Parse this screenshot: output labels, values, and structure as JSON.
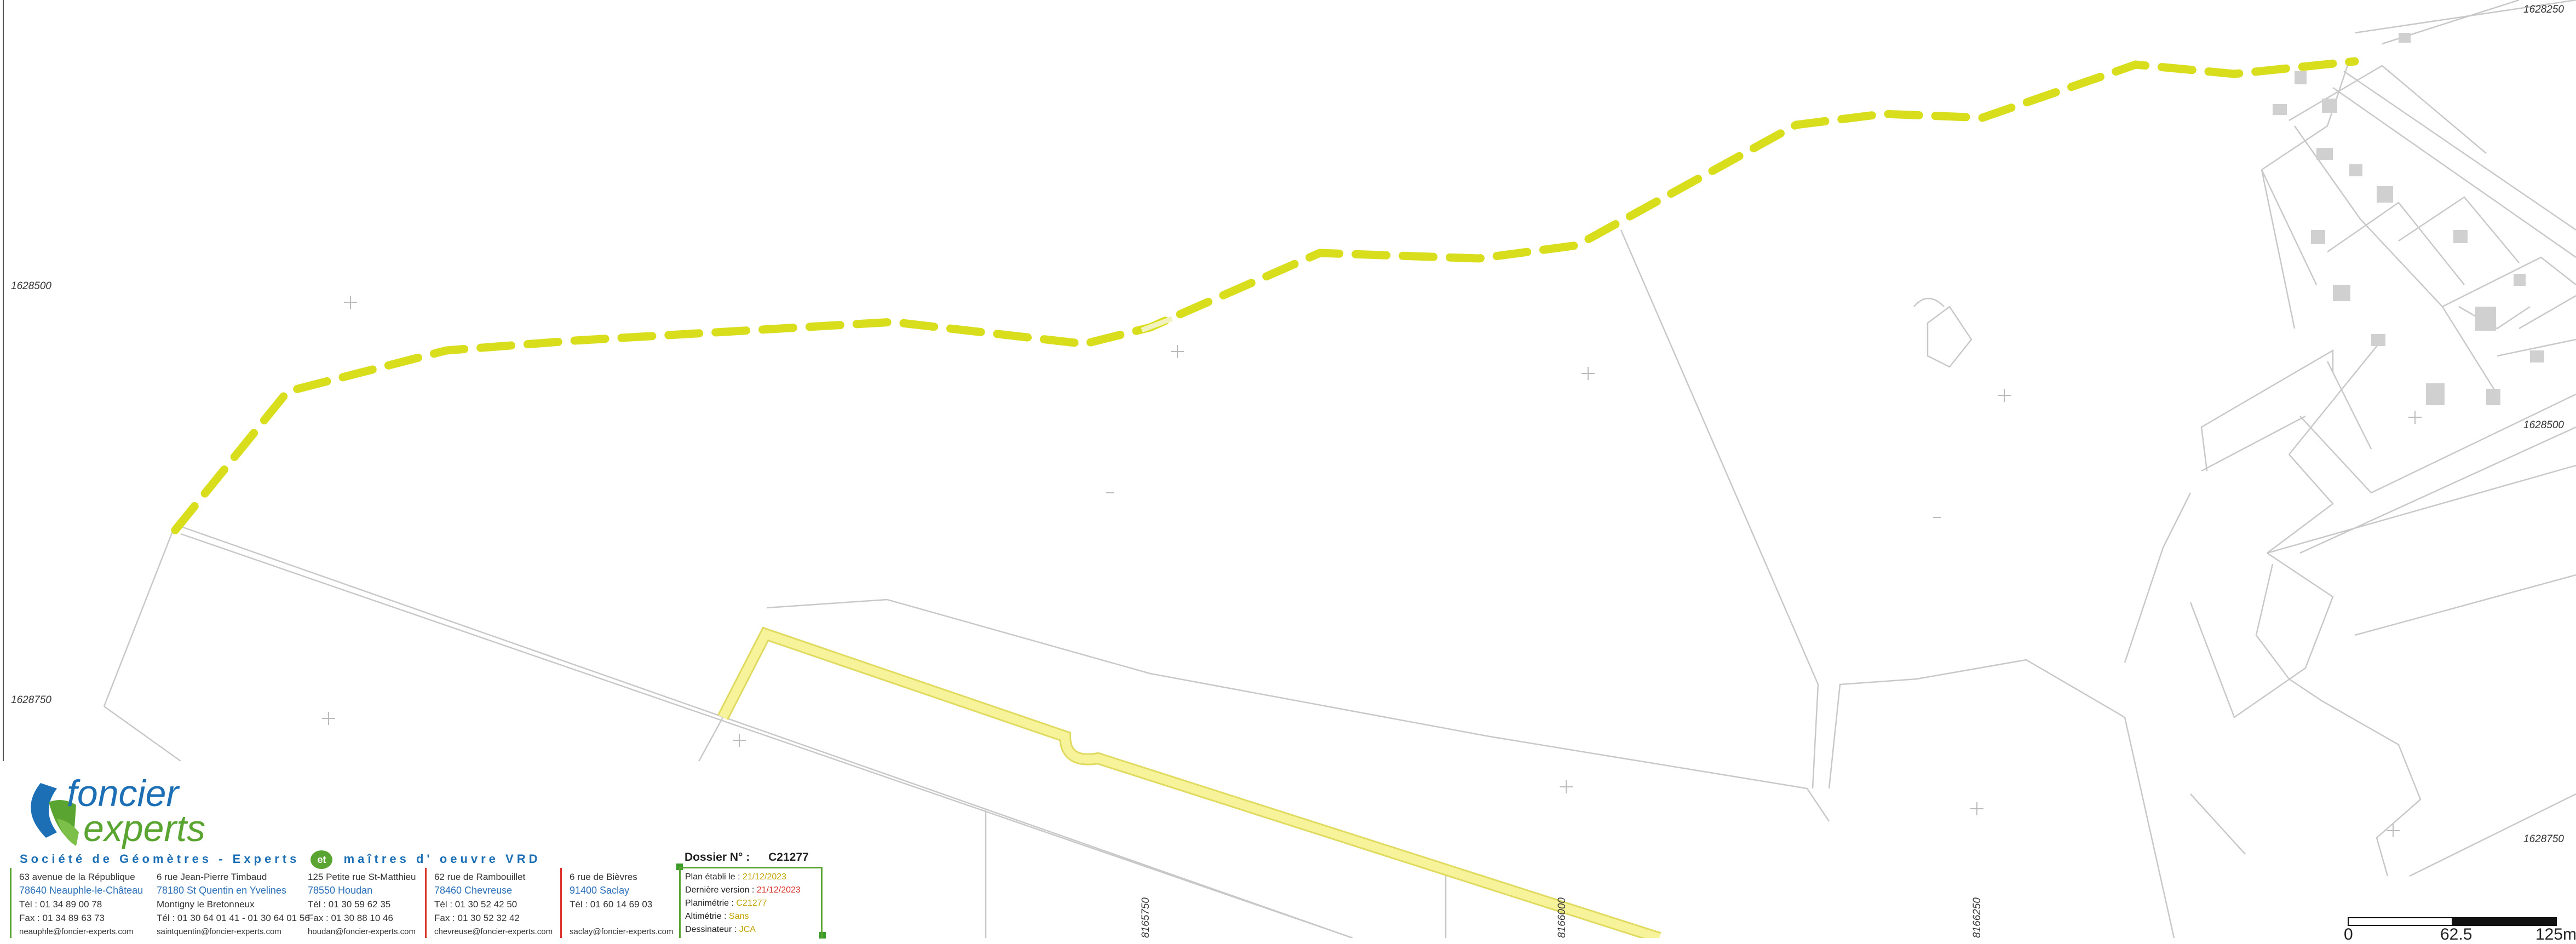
{
  "map": {
    "coords": {
      "left_1": "1628500",
      "left_2": "1628750",
      "right_1": "1628250",
      "right_2": "1628500",
      "right_3": "1628750",
      "bottom_1": "8165750",
      "bottom_2": "8166000",
      "bottom_3": "8166250"
    },
    "colors": {
      "boundary": "#d4dc1e",
      "road": "#f6f28a",
      "parcel_line": "#c8c8c8",
      "building": "#cfcfcf"
    }
  },
  "title_block": {
    "logo": {
      "word1": "foncier",
      "word2": "experts",
      "brand_blue": "#1d6fb5",
      "brand_green": "#5aa532"
    },
    "tagline": {
      "part1": "Société de Géomètres - Experts",
      "et": "et",
      "part2": "maîtres d' oeuvre VRD"
    },
    "offices": [
      {
        "address": "63 avenue de la République",
        "city": "78640 Neauphle-le-Château",
        "tel": "Tél : 01 34 89 00 78",
        "fax": "Fax : 01 34 89 63 73",
        "email": "neauphle@foncier-experts.com"
      },
      {
        "address": "6 rue Jean-Pierre Timbaud",
        "city": "78180 St Quentin en Yvelines",
        "tel": "Montigny le Bretonneux",
        "fax": "Tél : 01 30 64 01 41 - 01 30 64 01 56",
        "email": "saintquentin@foncier-experts.com"
      },
      {
        "address": "125 Petite rue St-Matthieu",
        "city": "78550 Houdan",
        "tel": "Tél : 01 30 59 62 35",
        "fax": "Fax : 01 30 88 10 46",
        "email": "houdan@foncier-experts.com"
      },
      {
        "address": "62 rue de Rambouillet",
        "city": "78460 Chevreuse",
        "tel": "Tél : 01 30 52 42 50",
        "fax": "Fax : 01 30 52 32 42",
        "email": "chevreuse@foncier-experts.com"
      },
      {
        "address": "6 rue de Bièvres",
        "city": "91400 Saclay",
        "tel": "Tél : 01 60 14 69 03",
        "fax": "",
        "email": "saclay@foncier-experts.com"
      }
    ],
    "dossier": {
      "label": "Dossier N° :",
      "value": "C21277"
    },
    "meta": {
      "plan_label": "Plan établi le :",
      "plan_value": "21/12/2023",
      "version_label": "Dernière version :",
      "version_value": "21/12/2023",
      "planimetrie_label": "Planimétrie :",
      "planimetrie_value": "C21277",
      "altimetrie_label": "Altimétrie :",
      "altimetrie_value": "Sans",
      "dessinateur_label": "Dessinateur :",
      "dessinateur_value": "JCA"
    }
  },
  "scale_bar": {
    "labels": [
      "0",
      "62.5",
      "125m"
    ]
  }
}
